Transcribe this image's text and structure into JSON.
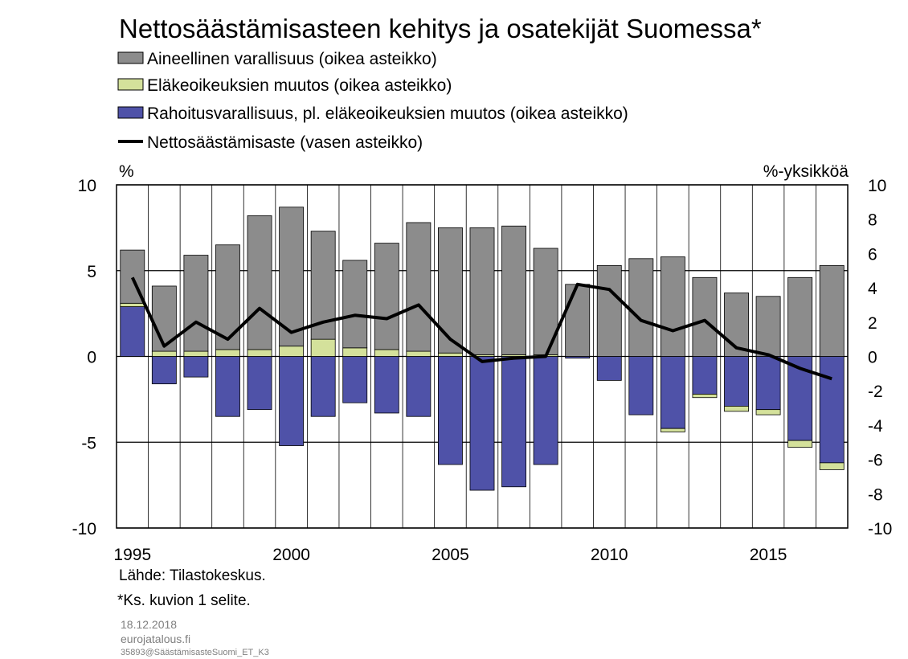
{
  "chart_data": {
    "type": "bar",
    "title": "Nettosäästämisasteen kehitys ja osatekijät Suomessa*",
    "left_unit": "%",
    "right_unit": "%-yksikköä",
    "left_axis": {
      "ylim": [
        -10,
        10
      ],
      "ticks": [
        "10",
        "5",
        "0",
        "-5",
        "-10"
      ]
    },
    "right_axis": {
      "ylim": [
        -10,
        10
      ],
      "ticks": [
        "10",
        "8",
        "6",
        "4",
        "2",
        "0",
        "-2",
        "-4",
        "-6",
        "-8",
        "-10"
      ]
    },
    "x_ticks": [
      "1995",
      "2000",
      "2005",
      "2010",
      "2015"
    ],
    "x": [
      1995,
      1996,
      1997,
      1998,
      1999,
      2000,
      2001,
      2002,
      2003,
      2004,
      2005,
      2006,
      2007,
      2008,
      2009,
      2010,
      2011,
      2012,
      2013,
      2014,
      2015,
      2016,
      2017
    ],
    "grid": "horizontal and vertical",
    "series": [
      {
        "name": "Aineellinen varallisuus  (oikea asteikko)",
        "type": "bar",
        "axis": "right",
        "color": "#8c8c8c",
        "values": [
          3.1,
          3.8,
          5.6,
          6.1,
          7.8,
          8.1,
          6.3,
          5.1,
          6.2,
          7.5,
          7.3,
          7.4,
          7.5,
          6.2,
          4.2,
          5.3,
          5.7,
          5.8,
          4.6,
          3.7,
          3.5,
          4.6,
          5.3
        ]
      },
      {
        "name": "Eläkeoikeuksien muutos  (oikea asteikko)",
        "type": "bar",
        "axis": "right",
        "color": "#d4e19b",
        "values": [
          0.2,
          0.3,
          0.3,
          0.4,
          0.4,
          0.6,
          1.0,
          0.5,
          0.4,
          0.3,
          0.2,
          0.1,
          0.1,
          0.1,
          0.0,
          0.0,
          0.0,
          -0.2,
          -0.2,
          -0.3,
          -0.3,
          -0.4,
          -0.4
        ]
      },
      {
        "name": "Rahoitusvarallisuus, pl. eläkeoikeuksien muutos (oikea asteikko)",
        "type": "bar",
        "axis": "right",
        "color": "#4f52a8",
        "values": [
          2.9,
          -1.6,
          -1.2,
          -3.5,
          -3.1,
          -5.2,
          -3.5,
          -2.7,
          -3.3,
          -3.5,
          -6.3,
          -7.8,
          -7.6,
          -6.3,
          -0.1,
          -1.4,
          -3.4,
          -4.2,
          -2.2,
          -2.9,
          -3.1,
          -4.9,
          -6.2
        ]
      },
      {
        "name": "Nettosäästämisaste (vasen asteikko)",
        "type": "line",
        "axis": "left",
        "color": "#000000",
        "values": [
          4.6,
          0.6,
          2.0,
          1.0,
          2.8,
          1.4,
          2.0,
          2.4,
          2.2,
          3.0,
          1.0,
          -0.3,
          -0.1,
          0.0,
          4.2,
          3.9,
          2.1,
          1.5,
          2.1,
          0.5,
          0.1,
          -0.7,
          -1.3
        ]
      }
    ]
  },
  "notes": {
    "source": "Lähde: Tilastokeskus.",
    "footnote": "*Ks. kuvion  1 selite.",
    "date": "18.12.2018",
    "site": "eurojatalous.fi",
    "code": "35893@SäästämisasteSuomi_ET_K3"
  }
}
